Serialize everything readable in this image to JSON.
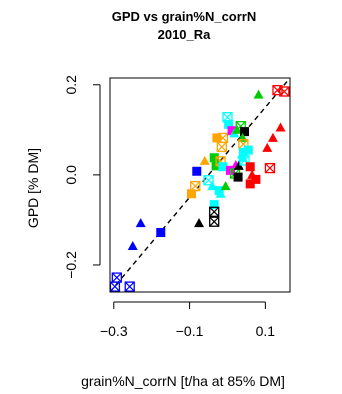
{
  "chart_data": {
    "type": "scatter",
    "title": "GPD vs grain%N_corrN",
    "subtitle": "2010_Ra",
    "xlabel": "grain%N_corrN [t/ha at 85% DM]",
    "ylabel": "GPD [% DM]",
    "xlim": [
      -0.31,
      0.165
    ],
    "ylim": [
      -0.26,
      0.215
    ],
    "x_ticks": [
      -0.3,
      -0.1,
      0.1
    ],
    "x_tick_labels": [
      "−0.3",
      "−0.1",
      "0.1"
    ],
    "y_ticks": [
      -0.2,
      0.0,
      0.2
    ],
    "y_tick_labels": [
      "−0.2",
      "0.0",
      "0.2"
    ],
    "grid": false,
    "reference_line": {
      "style": "dashed",
      "color": "#000000",
      "from": [
        -0.31,
        -0.26
      ],
      "to": [
        0.165,
        0.215
      ]
    },
    "points": [
      {
        "x": -0.297,
        "y": -0.248,
        "shape": "crossed-square",
        "color": "#0000ff"
      },
      {
        "x": -0.292,
        "y": -0.228,
        "shape": "crossed-square",
        "color": "#0000ff"
      },
      {
        "x": -0.258,
        "y": -0.248,
        "shape": "crossed-square",
        "color": "#0000ff"
      },
      {
        "x": -0.25,
        "y": -0.158,
        "shape": "triangle",
        "color": "#0000ff"
      },
      {
        "x": -0.229,
        "y": -0.107,
        "shape": "triangle",
        "color": "#0000ff"
      },
      {
        "x": -0.176,
        "y": -0.128,
        "shape": "square",
        "color": "#0000ff"
      },
      {
        "x": -0.081,
        "y": 0.008,
        "shape": "square",
        "color": "#0000ff"
      },
      {
        "x": -0.095,
        "y": -0.042,
        "shape": "square",
        "color": "#ffa500"
      },
      {
        "x": -0.085,
        "y": -0.025,
        "shape": "crossed-square",
        "color": "#ffa500"
      },
      {
        "x": -0.06,
        "y": 0.031,
        "shape": "triangle",
        "color": "#ffa500"
      },
      {
        "x": -0.075,
        "y": -0.107,
        "shape": "triangle",
        "color": "#000000"
      },
      {
        "x": -0.035,
        "y": 0.038,
        "shape": "square",
        "color": "#00cc00"
      },
      {
        "x": -0.035,
        "y": -0.066,
        "shape": "square",
        "color": "#00ffff"
      },
      {
        "x": -0.035,
        "y": -0.082,
        "shape": "crossed-square",
        "color": "#000000"
      },
      {
        "x": -0.035,
        "y": -0.104,
        "shape": "crossed-square",
        "color": "#000000"
      },
      {
        "x": -0.05,
        "y": -0.012,
        "shape": "crossed-square",
        "color": "#00ffff"
      },
      {
        "x": -0.04,
        "y": -0.025,
        "shape": "triangle",
        "color": "#00ffff"
      },
      {
        "x": -0.028,
        "y": 0.082,
        "shape": "square",
        "color": "#ffa500"
      },
      {
        "x": -0.03,
        "y": 0.02,
        "shape": "square",
        "color": "#00cc00"
      },
      {
        "x": -0.015,
        "y": 0.062,
        "shape": "crossed-square",
        "color": "#ffa500"
      },
      {
        "x": -0.012,
        "y": 0.082,
        "shape": "crossed-square",
        "color": "#ffa500"
      },
      {
        "x": -0.018,
        "y": 0.03,
        "shape": "crossed-square",
        "color": "#ffa500"
      },
      {
        "x": -0.012,
        "y": 0.018,
        "shape": "square",
        "color": "#00ffff"
      },
      {
        "x": -0.022,
        "y": -0.035,
        "shape": "square",
        "color": "#00ffff"
      },
      {
        "x": -0.018,
        "y": -0.042,
        "shape": "triangle",
        "color": "#00ffff"
      },
      {
        "x": 0.0,
        "y": 0.128,
        "shape": "crossed-square",
        "color": "#00ffff"
      },
      {
        "x": 0.003,
        "y": 0.112,
        "shape": "square",
        "color": "#00ffff"
      },
      {
        "x": 0.012,
        "y": 0.098,
        "shape": "square",
        "color": "#ff00ff"
      },
      {
        "x": 0.018,
        "y": 0.092,
        "shape": "triangle",
        "color": "#00ffff"
      },
      {
        "x": 0.025,
        "y": 0.1,
        "shape": "triangle",
        "color": "#00cc00"
      },
      {
        "x": 0.035,
        "y": 0.108,
        "shape": "crossed-square",
        "color": "#00cc00"
      },
      {
        "x": 0.045,
        "y": 0.096,
        "shape": "square",
        "color": "#000000"
      },
      {
        "x": 0.04,
        "y": 0.082,
        "shape": "triangle",
        "color": "#00cc00"
      },
      {
        "x": 0.042,
        "y": 0.068,
        "shape": "crossed-square",
        "color": "#ffa500"
      },
      {
        "x": 0.042,
        "y": 0.05,
        "shape": "square",
        "color": "#00ffff"
      },
      {
        "x": 0.04,
        "y": 0.038,
        "shape": "triangle",
        "color": "#00ffff"
      },
      {
        "x": 0.022,
        "y": 0.022,
        "shape": "triangle",
        "color": "#ff00ff"
      },
      {
        "x": 0.008,
        "y": 0.01,
        "shape": "square",
        "color": "#ff00ff"
      },
      {
        "x": -0.005,
        "y": -0.025,
        "shape": "triangle",
        "color": "#00cc00"
      },
      {
        "x": 0.02,
        "y": 0.003,
        "shape": "crossed-square",
        "color": "#00cc00"
      },
      {
        "x": 0.028,
        "y": -0.005,
        "shape": "square",
        "color": "#000000"
      },
      {
        "x": 0.03,
        "y": 0.02,
        "shape": "triangle",
        "color": "#000000"
      },
      {
        "x": 0.038,
        "y": 0.045,
        "shape": "triangle",
        "color": "#00ffff"
      },
      {
        "x": 0.045,
        "y": 0.032,
        "shape": "crossed-square",
        "color": "#00ffff"
      },
      {
        "x": 0.055,
        "y": 0.055,
        "shape": "square",
        "color": "#00ffff"
      },
      {
        "x": 0.06,
        "y": 0.018,
        "shape": "square",
        "color": "#ff0000"
      },
      {
        "x": 0.065,
        "y": 0.0,
        "shape": "triangle",
        "color": "#ff0000"
      },
      {
        "x": 0.06,
        "y": -0.02,
        "shape": "square",
        "color": "#ff0000"
      },
      {
        "x": 0.075,
        "y": -0.01,
        "shape": "square",
        "color": "#ff0000"
      },
      {
        "x": 0.082,
        "y": 0.178,
        "shape": "triangle",
        "color": "#00cc00"
      },
      {
        "x": 0.105,
        "y": 0.06,
        "shape": "triangle",
        "color": "#ff0000"
      },
      {
        "x": 0.112,
        "y": 0.015,
        "shape": "crossed-square",
        "color": "#ff0000"
      },
      {
        "x": 0.12,
        "y": 0.082,
        "shape": "triangle",
        "color": "#ff0000"
      },
      {
        "x": 0.14,
        "y": 0.105,
        "shape": "triangle",
        "color": "#ff0000"
      },
      {
        "x": 0.132,
        "y": 0.188,
        "shape": "crossed-square",
        "color": "#ff0000"
      },
      {
        "x": 0.15,
        "y": 0.185,
        "shape": "crossed-square",
        "color": "#ff0000"
      }
    ]
  }
}
